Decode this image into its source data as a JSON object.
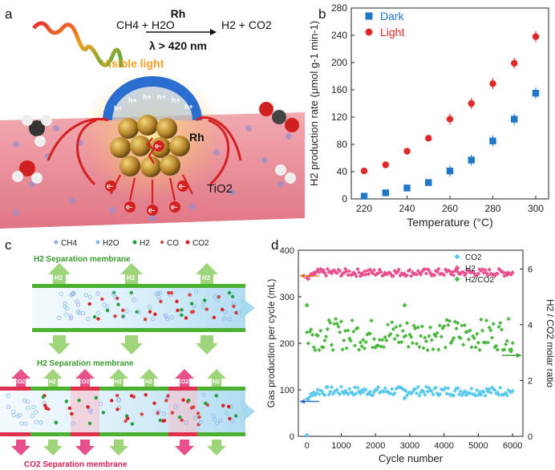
{
  "panel_labels": {
    "a": "a",
    "b": "b",
    "c": "c",
    "d": "d"
  },
  "panel_a": {
    "reaction_left": "CH4 + H2O",
    "catalyst": "Rh",
    "condition": "λ > 420 nm",
    "reaction_right": "H2 + CO2",
    "visible_light": "Visible light",
    "rh_label": "Rh",
    "support_label": "TiO2",
    "holes": [
      "h+",
      "h+",
      "h+",
      "h+",
      "h+",
      "h+"
    ],
    "electrons": [
      "e-",
      "e-",
      "e-",
      "e-",
      "e-",
      "e-"
    ]
  },
  "panel_c": {
    "legend": [
      "CH4",
      "H2O",
      "H2",
      "CO",
      "CO2"
    ],
    "membrane_h2_top": "H2 Separation membrane",
    "membrane_h2_mid": "H2 Separation membrane",
    "membrane_co2": "CO2 Separation membrane",
    "h2_arrow": "H2",
    "co2_arrow": "CO2"
  },
  "chart_data": [
    {
      "type": "scatter",
      "panel": "b",
      "xlabel": "Temperature (°C)",
      "ylabel": "H2 production rate (μmol g-1 min-1)",
      "xlim": [
        214,
        306
      ],
      "ylim": [
        0,
        280
      ],
      "xticks": [
        220,
        240,
        260,
        280,
        300
      ],
      "yticks": [
        0,
        40,
        80,
        120,
        160,
        200,
        240,
        280
      ],
      "legend_position": "top-left",
      "series": [
        {
          "name": "Dark",
          "color": "#1f77c8",
          "marker": "square",
          "x": [
            220,
            230,
            240,
            250,
            260,
            270,
            280,
            290,
            300
          ],
          "y": [
            4,
            9,
            16,
            24,
            41,
            57,
            85,
            117,
            155
          ]
        },
        {
          "name": "Light",
          "color": "#e02828",
          "marker": "circle",
          "x": [
            220,
            230,
            240,
            250,
            260,
            270,
            280,
            290,
            300
          ],
          "y": [
            41,
            50,
            70,
            89,
            117,
            140,
            169,
            199,
            238
          ]
        }
      ]
    },
    {
      "type": "scatter",
      "panel": "d",
      "xlabel": "Cycle number",
      "ylabel": "Gas production per cycle (mL)",
      "y2label": "H2 / CO2 molar ratio",
      "xlim": [
        -250,
        6300
      ],
      "ylim": [
        0,
        400
      ],
      "y2lim": [
        0,
        6.67
      ],
      "xticks": [
        0,
        1000,
        2000,
        3000,
        4000,
        5000,
        6000
      ],
      "yticks": [
        0,
        100,
        200,
        300,
        400
      ],
      "y2ticks": [
        0,
        2,
        4,
        6
      ],
      "legend_position": "top-right",
      "series": [
        {
          "name": "CO2",
          "color": "#58c8ec",
          "marker": "diamond",
          "mean": 97,
          "spread": 6,
          "start_value": 80,
          "first_point": [
            0,
            2
          ],
          "outlier": [
            2850,
            82
          ]
        },
        {
          "name": "H2",
          "color": "#e8508c",
          "marker": "diamond",
          "mean": 352,
          "spread": 5,
          "start_value": 340
        },
        {
          "name": "H2/CO2",
          "color": "#4cb840",
          "marker": "diamond",
          "axis": "right",
          "mean": 3.65,
          "spread": 0.35,
          "outliers": [
            [
              0,
              4.7
            ],
            [
              2850,
              4.7
            ],
            [
              5950,
              3.05
            ]
          ]
        }
      ]
    }
  ]
}
